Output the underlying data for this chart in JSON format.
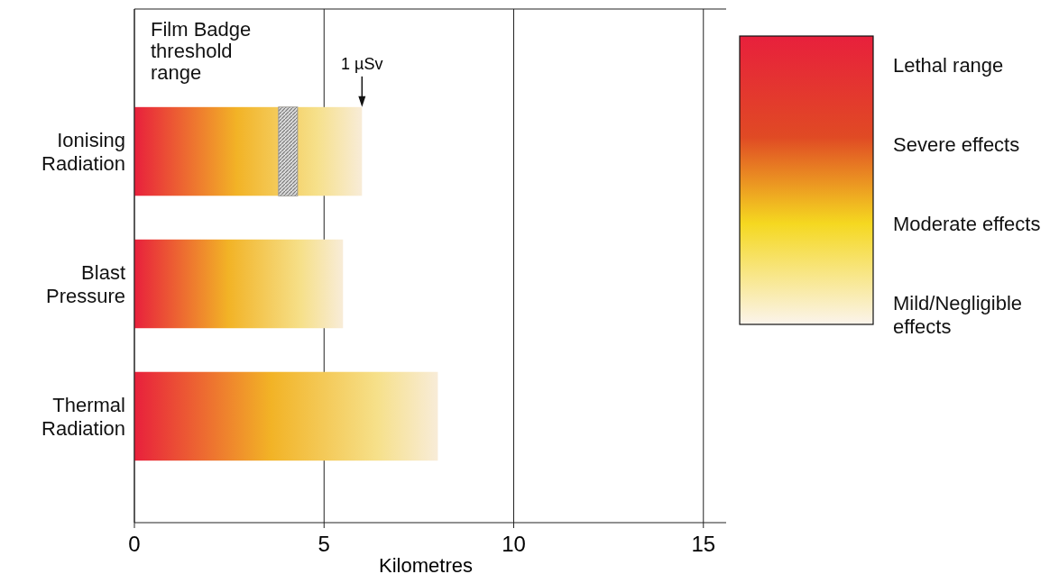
{
  "chart_data": {
    "type": "bar",
    "orientation": "horizontal",
    "categories": [
      "Ionising\nRadiation",
      "Blast\nPressure",
      "Thermal\nRadiation"
    ],
    "values": [
      6,
      5.5,
      8
    ],
    "colors": [
      "#e8203c",
      "#e8203c",
      "#e8203c"
    ],
    "xlim": [
      0,
      15.6
    ],
    "xticks": [
      0,
      5,
      10,
      15
    ],
    "grid": "x",
    "xlabel": "Kilometres",
    "bands": [
      {
        "axis": "x",
        "from": 3.8,
        "to": 4.3,
        "label": "Film Badge\nthreshold\nrange",
        "color": "#9a9a9a"
      }
    ],
    "annotations": [
      {
        "text": "1 µSv",
        "x": 6
      },
      "Lethal range",
      "Severe effects",
      "Moderate effects",
      "Mild/Negligible\neffects"
    ]
  }
}
